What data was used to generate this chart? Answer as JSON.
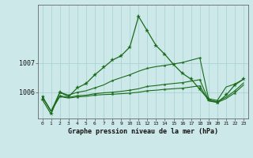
{
  "title": "Graphe pression niveau de la mer (hPa)",
  "bg_color": "#cce8e8",
  "grid_color": "#aad4d4",
  "line_color": "#1a6b1a",
  "xlim": [
    -0.5,
    23.5
  ],
  "ylim": [
    1005.1,
    1009.0
  ],
  "yticks": [
    1006,
    1007
  ],
  "xticks": [
    0,
    1,
    2,
    3,
    4,
    5,
    6,
    7,
    8,
    9,
    10,
    11,
    12,
    13,
    14,
    15,
    16,
    17,
    18,
    19,
    20,
    21,
    22,
    23
  ],
  "line1": [
    1005.75,
    1005.25,
    1006.0,
    1005.85,
    1006.15,
    1006.3,
    1006.6,
    1006.85,
    1007.1,
    1007.25,
    1007.55,
    1008.6,
    1008.1,
    1007.6,
    1007.3,
    1006.95,
    1006.65,
    1006.45,
    1006.1,
    1005.75,
    1005.65,
    1005.9,
    1006.25,
    1006.45
  ],
  "line2": [
    1005.85,
    1005.35,
    1006.0,
    1005.9,
    1006.0,
    1006.05,
    1006.15,
    1006.25,
    1006.4,
    1006.5,
    1006.6,
    1006.72,
    1006.82,
    1006.88,
    1006.92,
    1006.97,
    1007.02,
    1007.1,
    1007.18,
    1005.78,
    1005.72,
    1006.18,
    1006.28,
    1006.45
  ],
  "line3": [
    1005.85,
    1005.35,
    1005.88,
    1005.82,
    1005.88,
    1005.9,
    1005.95,
    1005.98,
    1006.0,
    1006.03,
    1006.07,
    1006.12,
    1006.2,
    1006.23,
    1006.27,
    1006.3,
    1006.33,
    1006.38,
    1006.43,
    1005.73,
    1005.68,
    1005.83,
    1006.05,
    1006.32
  ],
  "line4": [
    1005.85,
    1005.35,
    1005.85,
    1005.8,
    1005.84,
    1005.86,
    1005.9,
    1005.92,
    1005.93,
    1005.95,
    1005.97,
    1006.0,
    1006.05,
    1006.07,
    1006.1,
    1006.12,
    1006.14,
    1006.18,
    1006.22,
    1005.7,
    1005.65,
    1005.78,
    1005.98,
    1006.25
  ]
}
